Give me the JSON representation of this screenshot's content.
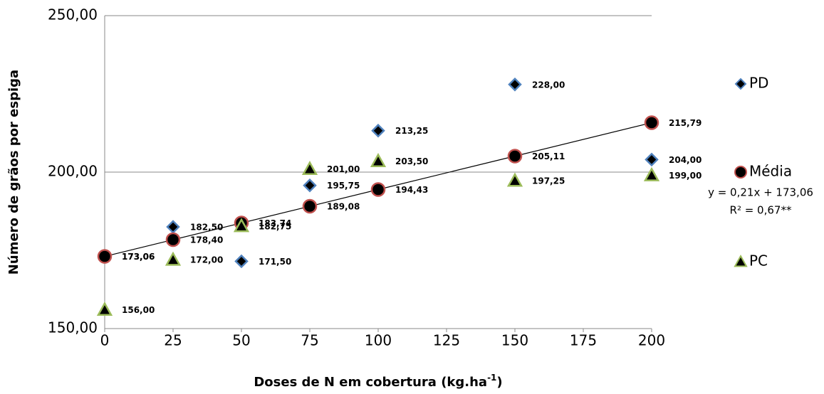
{
  "chart_data": {
    "type": "scatter",
    "x_label": [
      "Doses de N em cobertura (kg.ha",
      "-1",
      ")"
    ],
    "y_label": "Número de grãos por  espiga",
    "x": [
      0,
      25,
      50,
      75,
      100,
      150,
      200
    ],
    "series": [
      {
        "name": "PD",
        "marker": "diamond",
        "color": "#000000",
        "edge": "#4f81bd",
        "values": [
          173.06,
          182.5,
          171.5,
          195.75,
          213.25,
          228,
          204
        ],
        "value_labels": [
          "173,06",
          "182,50",
          "171,50",
          "195,75",
          "213,25",
          "228,00",
          "204,00"
        ]
      },
      {
        "name": "Média",
        "marker": "circle",
        "color": "#000000",
        "edge": "#c0504d",
        "trendline": true,
        "values": [
          173.06,
          178.4,
          183.74,
          189.08,
          194.43,
          205.11,
          215.79
        ],
        "value_labels": [
          "173,06",
          "178,40",
          "183,74",
          "189,08",
          "194,43",
          "205,11",
          "215,79"
        ]
      },
      {
        "name": "PC",
        "marker": "triangle",
        "color": "#000000",
        "edge": "#9bbb59",
        "values": [
          156,
          172,
          182.75,
          201,
          203.5,
          197.25,
          199
        ],
        "value_labels": [
          "156,00",
          "172,00",
          "182,75",
          "201,00",
          "203,50",
          "197,25",
          "199,00"
        ]
      }
    ],
    "annotations": [
      "y = 0,21x + 173,06",
      "R² = 0,67**"
    ],
    "xlim": [
      0,
      200
    ],
    "xticks": [
      0,
      25,
      50,
      75,
      100,
      125,
      150,
      175,
      200
    ],
    "ylim": [
      150,
      250
    ],
    "yticks": [
      {
        "value": 150,
        "label": "150,00"
      },
      {
        "value": 200,
        "label": "200,00"
      },
      {
        "value": 250,
        "label": "250,00"
      }
    ],
    "grid": true,
    "legend": "right"
  }
}
